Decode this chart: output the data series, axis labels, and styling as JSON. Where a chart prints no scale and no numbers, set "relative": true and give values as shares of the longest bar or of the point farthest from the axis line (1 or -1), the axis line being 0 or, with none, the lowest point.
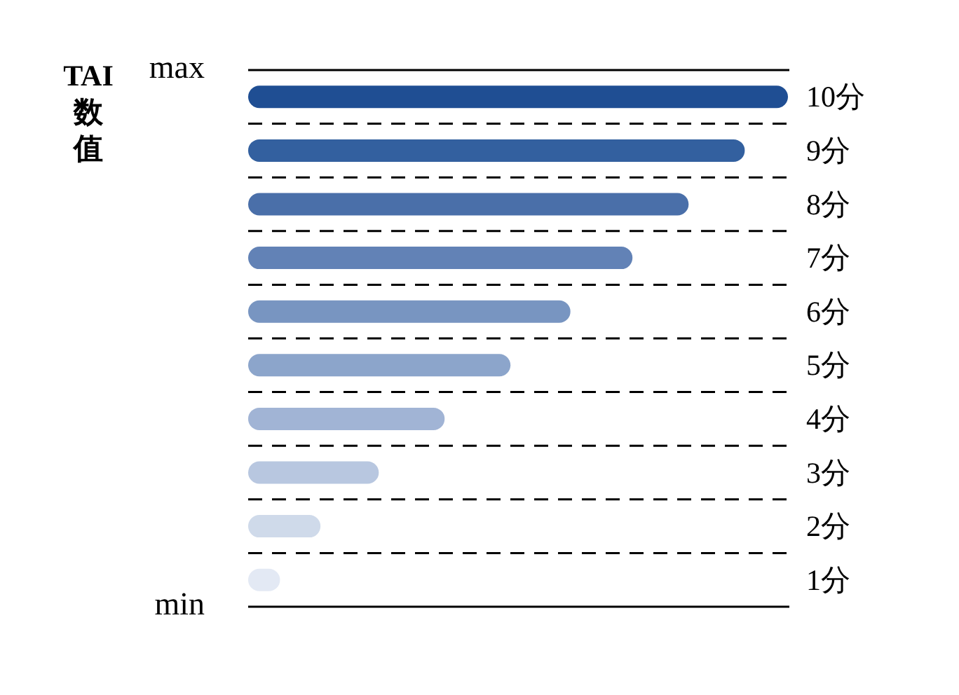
{
  "chart_data": {
    "type": "bar",
    "orientation": "horizontal",
    "relative": true,
    "ylabel": "TAI数值",
    "categories": [
      "10分",
      "9分",
      "8分",
      "7分",
      "6分",
      "5分",
      "4分",
      "3分",
      "2分",
      "1分"
    ],
    "values": [
      1,
      0.92,
      0.816,
      0.712,
      0.597,
      0.486,
      0.364,
      0.242,
      0.134,
      0.059
    ],
    "colors": [
      "#1f4e93",
      "#33609f",
      "#4a6fa9",
      "#6282b6",
      "#7895c1",
      "#8ca5cb",
      "#a1b4d5",
      "#b8c7e0",
      "#cfdaea",
      "#e3e9f4"
    ],
    "annotations": [
      "max",
      "min"
    ],
    "grid": "y",
    "tick_labels": "y"
  }
}
